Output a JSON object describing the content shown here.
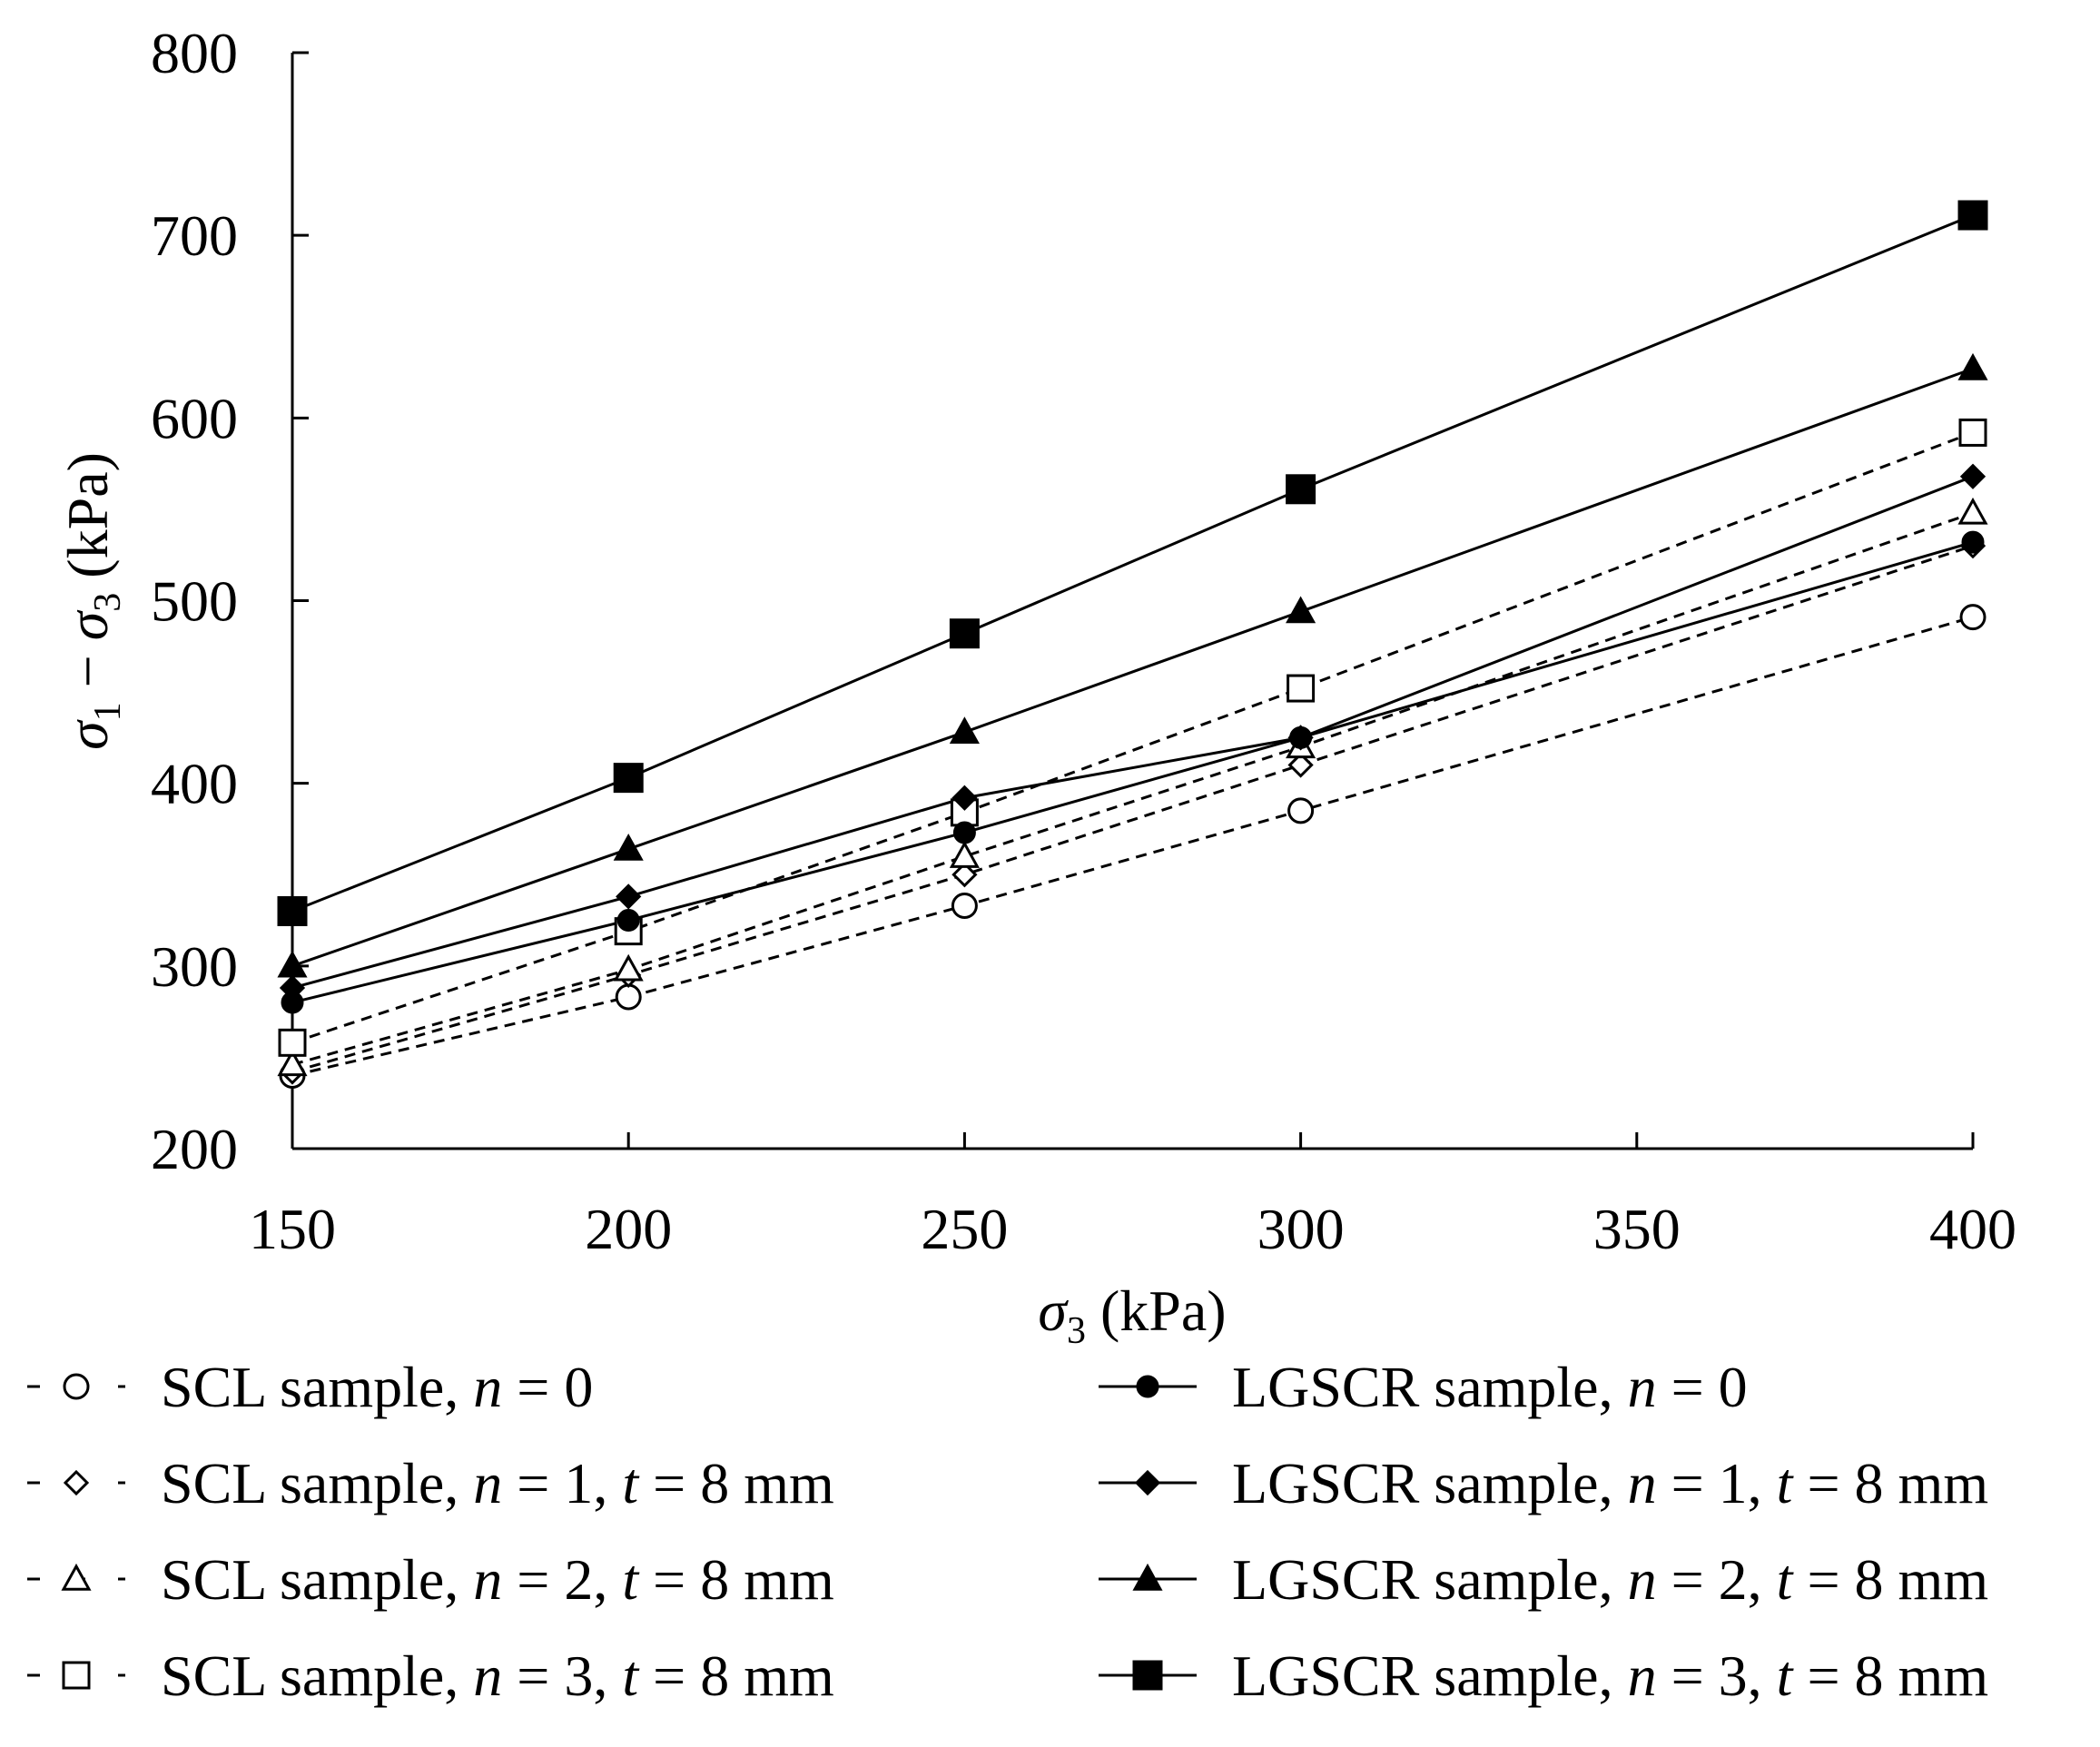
{
  "chart_data": {
    "type": "line",
    "xlabel": "σ3 (kPa)",
    "ylabel": "σ1 − σ3 (kPa)",
    "xlim": [
      150,
      400
    ],
    "ylim": [
      200,
      800
    ],
    "xticks": [
      150,
      200,
      250,
      300,
      350,
      400
    ],
    "yticks": [
      200,
      300,
      400,
      500,
      600,
      700,
      800
    ],
    "grid": false,
    "legend_position": "bottom",
    "x": [
      150,
      200,
      250,
      300,
      400
    ],
    "series": [
      {
        "name": "SCL sample, n = 0",
        "prefix": "SCL sample, ",
        "rest": " = 0",
        "t": false,
        "marker": "circle",
        "filled": false,
        "dashed": true,
        "values": [
          240,
          283,
          333,
          385,
          491
        ]
      },
      {
        "name": "SCL sample, n = 1, t = 8 mm",
        "prefix": "SCL sample, ",
        "rest": " = 1, ",
        "t": true,
        "marker": "diamond",
        "filled": false,
        "dashed": true,
        "values": [
          242,
          295,
          350,
          410,
          530
        ]
      },
      {
        "name": "SCL sample, n = 2, t = 8 mm",
        "prefix": "SCL sample, ",
        "rest": " = 2, ",
        "t": true,
        "marker": "triangle",
        "filled": false,
        "dashed": true,
        "values": [
          246,
          298,
          360,
          420,
          548
        ]
      },
      {
        "name": "SCL sample, n = 3, t = 8 mm",
        "prefix": "SCL sample, ",
        "rest": " = 3, ",
        "t": true,
        "marker": "square",
        "filled": false,
        "dashed": true,
        "values": [
          258,
          319,
          384,
          452,
          592
        ]
      },
      {
        "name": "LGSCR sample, n = 0",
        "prefix": "LGSCR sample, ",
        "rest": " = 0",
        "t": false,
        "marker": "circle",
        "filled": true,
        "dashed": false,
        "values": [
          280,
          325,
          373,
          425,
          532
        ]
      },
      {
        "name": "LGSCR sample, n = 1, t = 8 mm",
        "prefix": "LGSCR sample, ",
        "rest": " = 1, ",
        "t": true,
        "marker": "diamond",
        "filled": true,
        "dashed": false,
        "values": [
          288,
          338,
          392,
          425,
          568
        ]
      },
      {
        "name": "LGSCR sample, n = 2, t = 8 mm",
        "prefix": "LGSCR sample, ",
        "rest": " = 2, ",
        "t": true,
        "marker": "triangle",
        "filled": true,
        "dashed": false,
        "values": [
          300,
          364,
          428,
          494,
          627
        ]
      },
      {
        "name": "LGSCR sample, n = 3, t = 8 mm",
        "prefix": "LGSCR sample, ",
        "rest": " = 3, ",
        "t": true,
        "marker": "square",
        "filled": true,
        "dashed": false,
        "values": [
          330,
          403,
          482,
          561,
          711
        ]
      }
    ],
    "legend_symbols": {
      "n": "n",
      "t": "t",
      "t_value": " = 8 mm"
    }
  }
}
